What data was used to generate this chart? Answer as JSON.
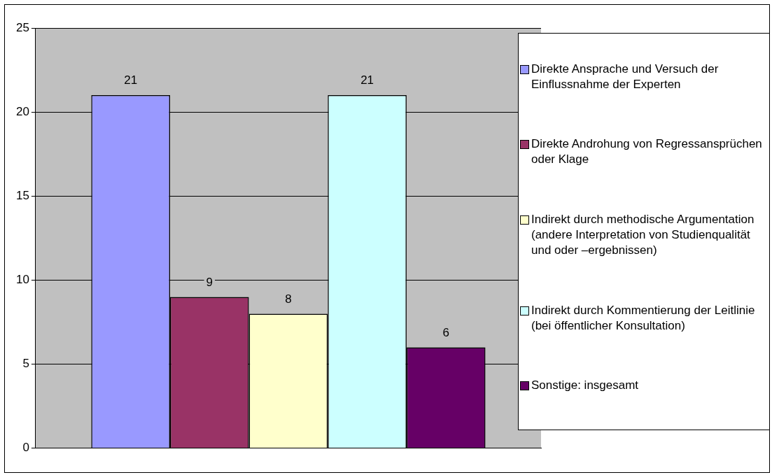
{
  "chart_data": {
    "type": "bar",
    "categories": [
      null
    ],
    "series": [
      {
        "name": "Direkte Ansprache und Versuch der Einflussnahme der Experten",
        "color": "#9999ff",
        "values": [
          21
        ]
      },
      {
        "name": "Direkte Androhung von Regressansprüchen oder Klage",
        "color": "#993366",
        "values": [
          9
        ]
      },
      {
        "name": "Indirekt durch methodische Argumentation (andere Interpretation von Studienqualität und oder –ergebnissen)",
        "color": "#ffffcc",
        "values": [
          8
        ]
      },
      {
        "name": "Indirekt durch Kommentierung der Leitlinie (bei öffentlicher Konsultation)",
        "color": "#ccffff",
        "values": [
          21
        ]
      },
      {
        "name": "Sonstige: insgesamt",
        "color": "#660066",
        "values": [
          6
        ]
      }
    ],
    "ylim": [
      0,
      25
    ],
    "yticks": [
      0,
      5,
      10,
      15,
      20,
      25
    ],
    "grid": "y",
    "legend": "right",
    "data_labels": true
  }
}
